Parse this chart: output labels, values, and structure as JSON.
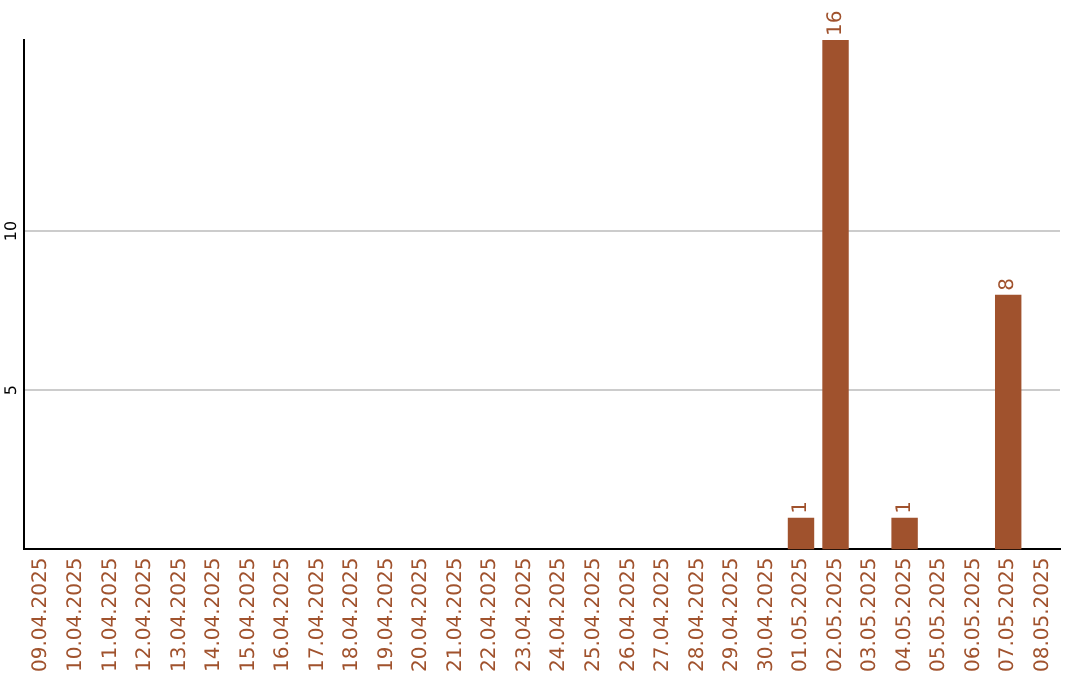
{
  "chart_data": {
    "type": "bar",
    "categories": [
      "09.04.2025",
      "10.04.2025",
      "11.04.2025",
      "12.04.2025",
      "13.04.2025",
      "14.04.2025",
      "15.04.2025",
      "16.04.2025",
      "17.04.2025",
      "18.04.2025",
      "19.04.2025",
      "20.04.2025",
      "21.04.2025",
      "22.04.2025",
      "23.04.2025",
      "24.04.2025",
      "25.04.2025",
      "26.04.2025",
      "27.04.2025",
      "28.04.2025",
      "29.04.2025",
      "30.04.2025",
      "01.05.2025",
      "02.05.2025",
      "03.05.2025",
      "04.05.2025",
      "05.05.2025",
      "06.05.2025",
      "07.05.2025",
      "08.05.2025"
    ],
    "values": [
      0,
      0,
      0,
      0,
      0,
      0,
      0,
      0,
      0,
      0,
      0,
      0,
      0,
      0,
      0,
      0,
      0,
      0,
      0,
      0,
      0,
      0,
      1,
      16,
      0,
      1,
      0,
      0,
      8,
      0
    ],
    "value_labels": [
      null,
      null,
      null,
      null,
      null,
      null,
      null,
      null,
      null,
      null,
      null,
      null,
      null,
      null,
      null,
      null,
      null,
      null,
      null,
      null,
      null,
      null,
      "1",
      "16",
      null,
      "1",
      null,
      null,
      "8",
      null
    ],
    "color": "#a0522d",
    "ylim": [
      0,
      16
    ],
    "yticks": [
      5,
      10
    ],
    "grid": "y",
    "legend": false
  }
}
